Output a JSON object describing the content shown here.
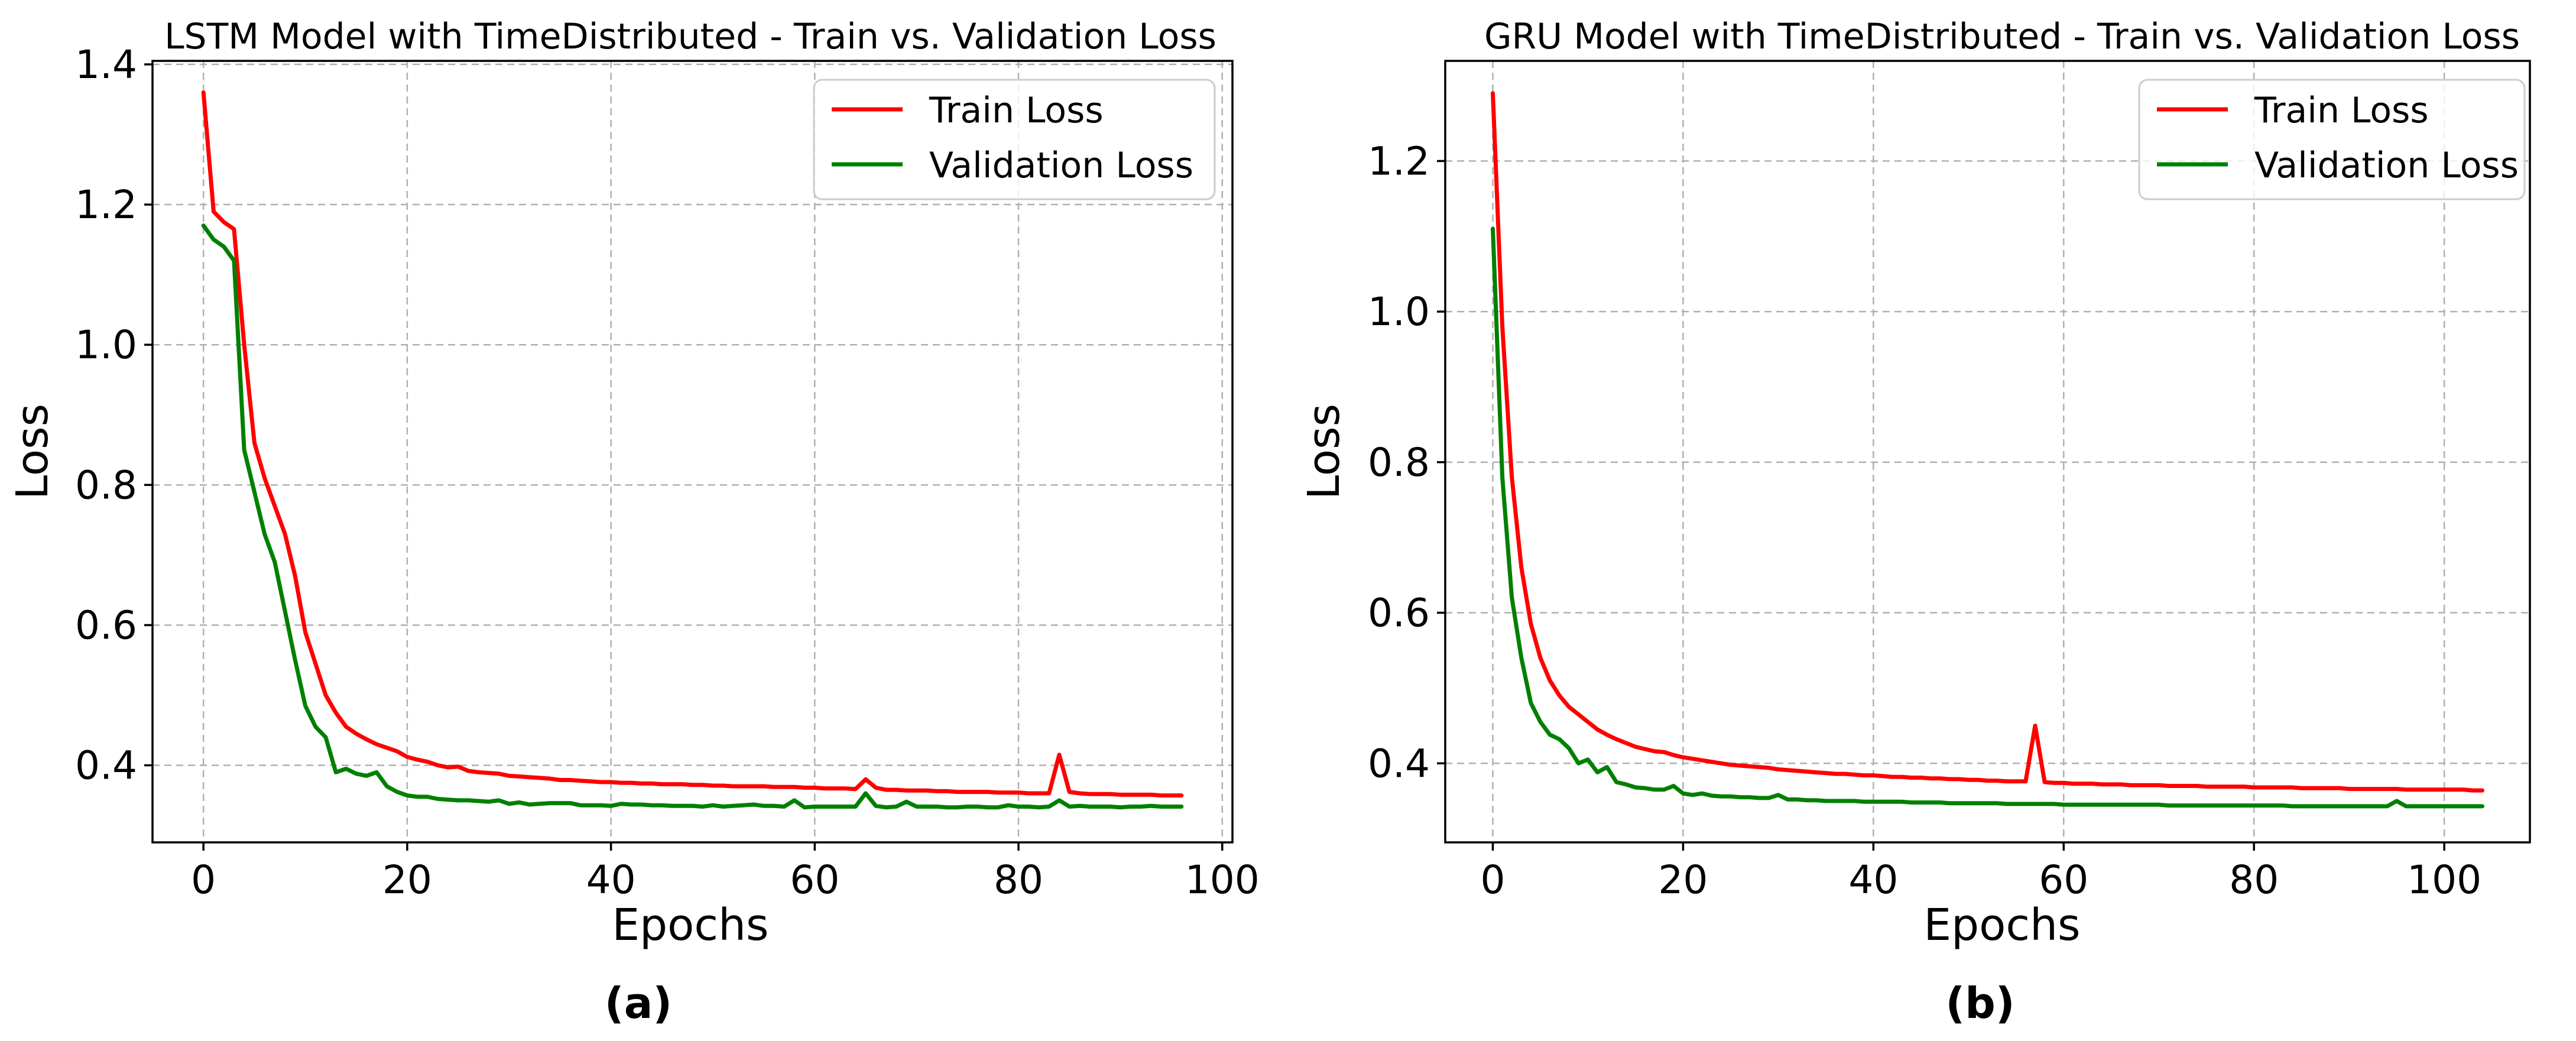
{
  "chart_data": [
    {
      "type": "line",
      "title": "LSTM Model with TimeDistributed - Train vs. Validation Loss",
      "xlabel": "Epochs",
      "ylabel": "Loss",
      "panel_label": "(a)",
      "xlim": [
        -5,
        101
      ],
      "ylim": [
        0.29,
        1.405
      ],
      "xticks": [
        0,
        20,
        40,
        60,
        80,
        100
      ],
      "yticks": [
        0.4,
        0.6,
        0.8,
        1.0,
        1.2,
        1.4
      ],
      "xtick_labels": [
        "0",
        "20",
        "40",
        "60",
        "80",
        "100"
      ],
      "ytick_labels": [
        "0.4",
        "0.6",
        "0.8",
        "1.0",
        "1.2",
        "1.4"
      ],
      "grid": true,
      "legend_position": "top-right",
      "series": [
        {
          "name": "Train Loss",
          "color": "#ff0000",
          "values": [
            1.36,
            1.19,
            1.175,
            1.165,
            1.0,
            0.86,
            0.81,
            0.77,
            0.73,
            0.67,
            0.59,
            0.545,
            0.5,
            0.475,
            0.455,
            0.445,
            0.437,
            0.43,
            0.425,
            0.42,
            0.412,
            0.408,
            0.405,
            0.4,
            0.397,
            0.398,
            0.392,
            0.39,
            0.389,
            0.388,
            0.385,
            0.384,
            0.383,
            0.382,
            0.381,
            0.379,
            0.379,
            0.378,
            0.377,
            0.376,
            0.376,
            0.375,
            0.375,
            0.374,
            0.374,
            0.373,
            0.373,
            0.373,
            0.372,
            0.372,
            0.371,
            0.371,
            0.37,
            0.37,
            0.37,
            0.37,
            0.369,
            0.369,
            0.369,
            0.368,
            0.368,
            0.367,
            0.367,
            0.367,
            0.366,
            0.38,
            0.368,
            0.365,
            0.365,
            0.364,
            0.364,
            0.364,
            0.363,
            0.363,
            0.362,
            0.362,
            0.362,
            0.362,
            0.361,
            0.361,
            0.361,
            0.36,
            0.36,
            0.36,
            0.415,
            0.362,
            0.36,
            0.359,
            0.359,
            0.359,
            0.358,
            0.358,
            0.358,
            0.358,
            0.357,
            0.357,
            0.357
          ]
        },
        {
          "name": "Validation Loss",
          "color": "#008000",
          "values": [
            1.17,
            1.15,
            1.14,
            1.12,
            0.85,
            0.79,
            0.73,
            0.69,
            0.62,
            0.55,
            0.485,
            0.455,
            0.44,
            0.39,
            0.395,
            0.388,
            0.385,
            0.39,
            0.37,
            0.362,
            0.357,
            0.355,
            0.355,
            0.352,
            0.351,
            0.35,
            0.35,
            0.349,
            0.348,
            0.35,
            0.345,
            0.347,
            0.344,
            0.345,
            0.346,
            0.346,
            0.346,
            0.343,
            0.343,
            0.343,
            0.342,
            0.345,
            0.344,
            0.344,
            0.343,
            0.343,
            0.342,
            0.342,
            0.342,
            0.341,
            0.343,
            0.341,
            0.342,
            0.343,
            0.344,
            0.342,
            0.342,
            0.341,
            0.35,
            0.34,
            0.341,
            0.341,
            0.341,
            0.341,
            0.341,
            0.36,
            0.342,
            0.34,
            0.341,
            0.348,
            0.341,
            0.341,
            0.341,
            0.34,
            0.34,
            0.341,
            0.341,
            0.34,
            0.34,
            0.343,
            0.341,
            0.341,
            0.34,
            0.341,
            0.35,
            0.341,
            0.342,
            0.341,
            0.341,
            0.341,
            0.34,
            0.341,
            0.341,
            0.342,
            0.341,
            0.341,
            0.341
          ]
        }
      ]
    },
    {
      "type": "line",
      "title": "GRU Model with TimeDistributed - Train vs. Validation Loss",
      "xlabel": "Epochs",
      "ylabel": "Loss",
      "panel_label": "(b)",
      "xlim": [
        -5,
        109
      ],
      "ylim": [
        0.295,
        1.333
      ],
      "xticks": [
        0,
        20,
        40,
        60,
        80,
        100
      ],
      "yticks": [
        0.4,
        0.6,
        0.8,
        1.0,
        1.2
      ],
      "xtick_labels": [
        "0",
        "20",
        "40",
        "60",
        "80",
        "100"
      ],
      "ytick_labels": [
        "0.4",
        "0.6",
        "0.8",
        "1.0",
        "1.2"
      ],
      "grid": true,
      "legend_position": "top-right",
      "series": [
        {
          "name": "Train Loss",
          "color": "#ff0000",
          "values": [
            1.29,
            0.98,
            0.78,
            0.66,
            0.585,
            0.54,
            0.51,
            0.49,
            0.475,
            0.465,
            0.455,
            0.445,
            0.438,
            0.432,
            0.427,
            0.422,
            0.419,
            0.416,
            0.415,
            0.411,
            0.408,
            0.406,
            0.404,
            0.402,
            0.4,
            0.398,
            0.397,
            0.396,
            0.395,
            0.394,
            0.392,
            0.391,
            0.39,
            0.389,
            0.388,
            0.387,
            0.386,
            0.386,
            0.385,
            0.384,
            0.384,
            0.383,
            0.382,
            0.382,
            0.381,
            0.381,
            0.38,
            0.38,
            0.379,
            0.379,
            0.378,
            0.378,
            0.377,
            0.377,
            0.376,
            0.376,
            0.376,
            0.45,
            0.375,
            0.374,
            0.374,
            0.373,
            0.373,
            0.373,
            0.372,
            0.372,
            0.372,
            0.371,
            0.371,
            0.371,
            0.371,
            0.37,
            0.37,
            0.37,
            0.37,
            0.369,
            0.369,
            0.369,
            0.369,
            0.369,
            0.368,
            0.368,
            0.368,
            0.368,
            0.368,
            0.367,
            0.367,
            0.367,
            0.367,
            0.367,
            0.366,
            0.366,
            0.366,
            0.366,
            0.366,
            0.366,
            0.365,
            0.365,
            0.365,
            0.365,
            0.365,
            0.365,
            0.365,
            0.364,
            0.364
          ]
        },
        {
          "name": "Validation Loss",
          "color": "#008000",
          "values": [
            1.11,
            0.78,
            0.62,
            0.54,
            0.48,
            0.455,
            0.438,
            0.432,
            0.42,
            0.4,
            0.405,
            0.388,
            0.395,
            0.375,
            0.372,
            0.368,
            0.367,
            0.365,
            0.365,
            0.37,
            0.36,
            0.358,
            0.36,
            0.357,
            0.356,
            0.356,
            0.355,
            0.355,
            0.354,
            0.354,
            0.358,
            0.352,
            0.352,
            0.351,
            0.351,
            0.35,
            0.35,
            0.35,
            0.35,
            0.349,
            0.349,
            0.349,
            0.349,
            0.349,
            0.348,
            0.348,
            0.348,
            0.348,
            0.347,
            0.347,
            0.347,
            0.347,
            0.347,
            0.347,
            0.346,
            0.346,
            0.346,
            0.346,
            0.346,
            0.346,
            0.345,
            0.345,
            0.345,
            0.345,
            0.345,
            0.345,
            0.345,
            0.345,
            0.345,
            0.345,
            0.345,
            0.344,
            0.344,
            0.344,
            0.344,
            0.344,
            0.344,
            0.344,
            0.344,
            0.344,
            0.344,
            0.344,
            0.344,
            0.344,
            0.343,
            0.343,
            0.343,
            0.343,
            0.343,
            0.343,
            0.343,
            0.343,
            0.343,
            0.343,
            0.343,
            0.35,
            0.343,
            0.343,
            0.343,
            0.343,
            0.343,
            0.343,
            0.343,
            0.343,
            0.343
          ]
        }
      ]
    }
  ]
}
